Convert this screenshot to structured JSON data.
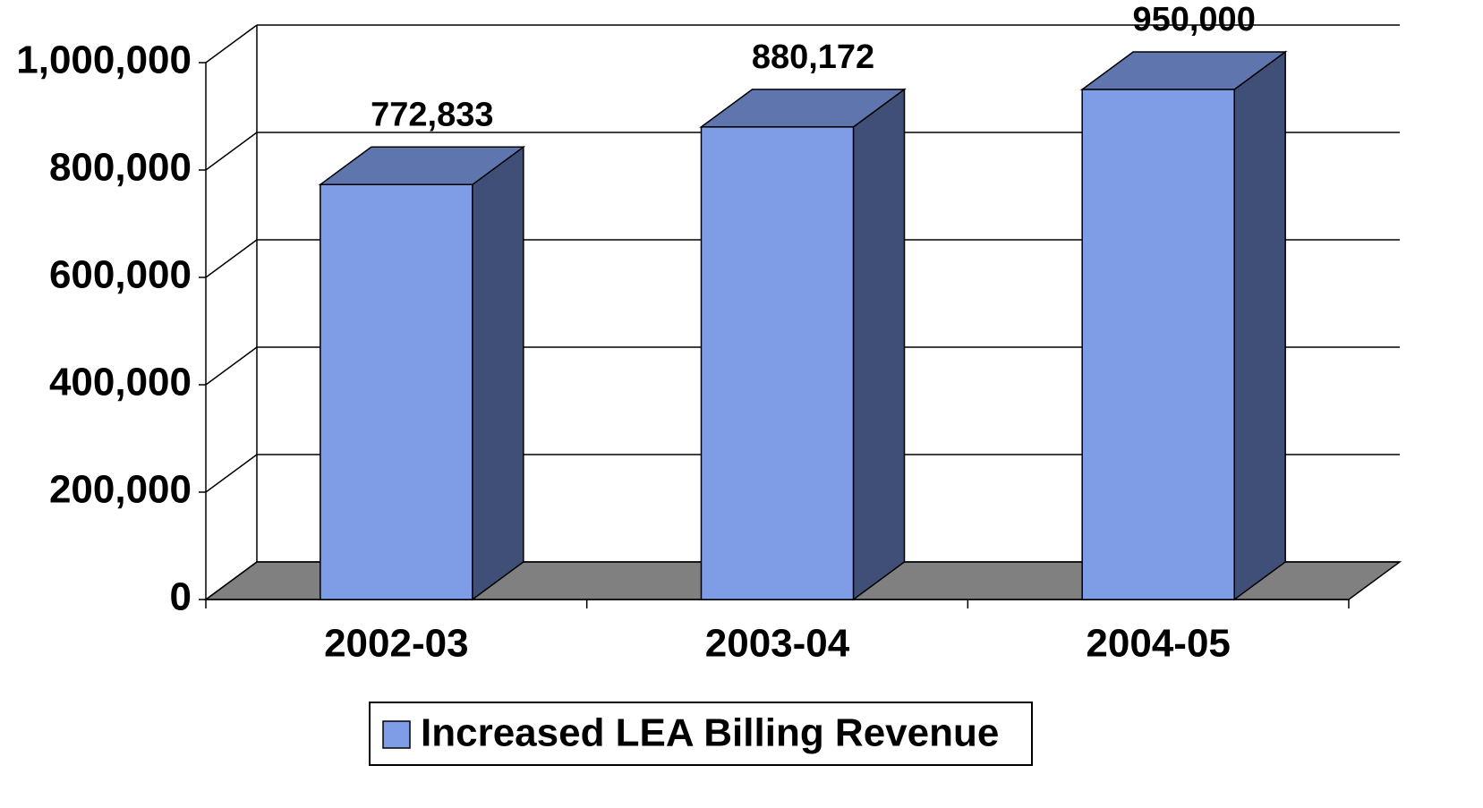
{
  "chart_data": {
    "type": "bar3d",
    "categories": [
      "2002-03",
      "2003-04",
      "2004-05"
    ],
    "series": [
      {
        "name": "Increased LEA Billing Revenue",
        "color": "#7f9de6",
        "values": [
          772833,
          880172,
          950000
        ],
        "value_labels": [
          "772,833",
          "880,172",
          "950,000"
        ]
      }
    ],
    "ylim": [
      0,
      1000000
    ],
    "yticks": [
      0,
      {
        "value": 200000,
        "label": "200,000"
      },
      {
        "value": 400000,
        "label": "400,000"
      },
      {
        "value": 600000,
        "label": "600,000"
      },
      {
        "value": 800000,
        "label": "800,000"
      },
      {
        "value": 1000000,
        "label": "1,000,000"
      }
    ],
    "grid": true,
    "legend": "bottom"
  }
}
